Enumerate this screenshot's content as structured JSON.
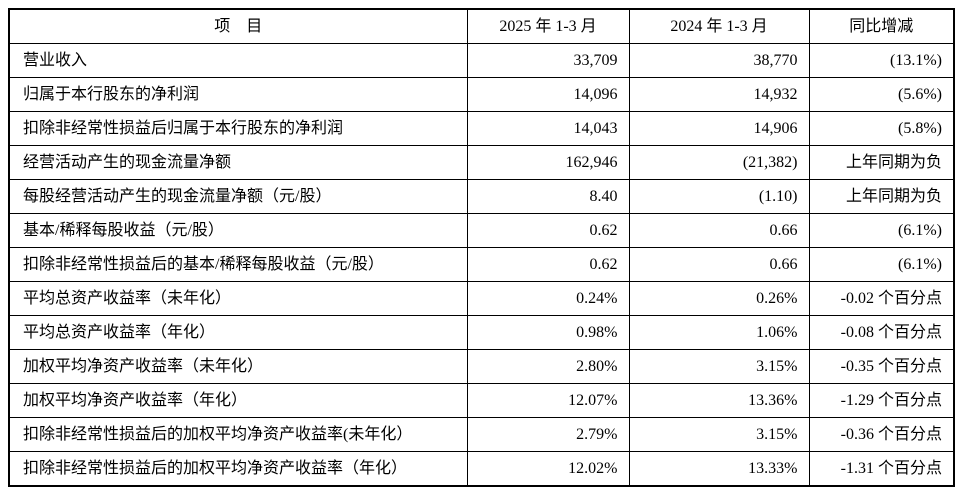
{
  "table": {
    "columns": [
      "项　目",
      "2025 年 1-3 月",
      "2024 年 1-3 月",
      "同比增减"
    ],
    "rows": [
      {
        "item": "营业收入",
        "y2025": "33,709",
        "y2024": "38,770",
        "yoy": "(13.1%)"
      },
      {
        "item": "归属于本行股东的净利润",
        "y2025": "14,096",
        "y2024": "14,932",
        "yoy": "(5.6%)"
      },
      {
        "item": "扣除非经常性损益后归属于本行股东的净利润",
        "y2025": "14,043",
        "y2024": "14,906",
        "yoy": "(5.8%)"
      },
      {
        "item": "经营活动产生的现金流量净额",
        "y2025": "162,946",
        "y2024": "(21,382)",
        "yoy": "上年同期为负"
      },
      {
        "item": "每股经营活动产生的现金流量净额（元/股）",
        "y2025": "8.40",
        "y2024": "(1.10)",
        "yoy": "上年同期为负"
      },
      {
        "item": "基本/稀释每股收益（元/股）",
        "y2025": "0.62",
        "y2024": "0.66",
        "yoy": "(6.1%)"
      },
      {
        "item": "扣除非经常性损益后的基本/稀释每股收益（元/股）",
        "y2025": "0.62",
        "y2024": "0.66",
        "yoy": "(6.1%)"
      },
      {
        "item": "平均总资产收益率（未年化）",
        "y2025": "0.24%",
        "y2024": "0.26%",
        "yoy": "-0.02 个百分点"
      },
      {
        "item": "平均总资产收益率（年化）",
        "y2025": "0.98%",
        "y2024": "1.06%",
        "yoy": "-0.08 个百分点"
      },
      {
        "item": "加权平均净资产收益率（未年化）",
        "y2025": "2.80%",
        "y2024": "3.15%",
        "yoy": "-0.35 个百分点"
      },
      {
        "item": "加权平均净资产收益率（年化）",
        "y2025": "12.07%",
        "y2024": "13.36%",
        "yoy": "-1.29 个百分点"
      },
      {
        "item": "扣除非经常性损益后的加权平均净资产收益率(未年化）",
        "y2025": "2.79%",
        "y2024": "3.15%",
        "yoy": "-0.36 个百分点"
      },
      {
        "item": "扣除非经常性损益后的加权平均净资产收益率（年化）",
        "y2025": "12.02%",
        "y2024": "13.33%",
        "yoy": "-1.31 个百分点"
      }
    ]
  }
}
